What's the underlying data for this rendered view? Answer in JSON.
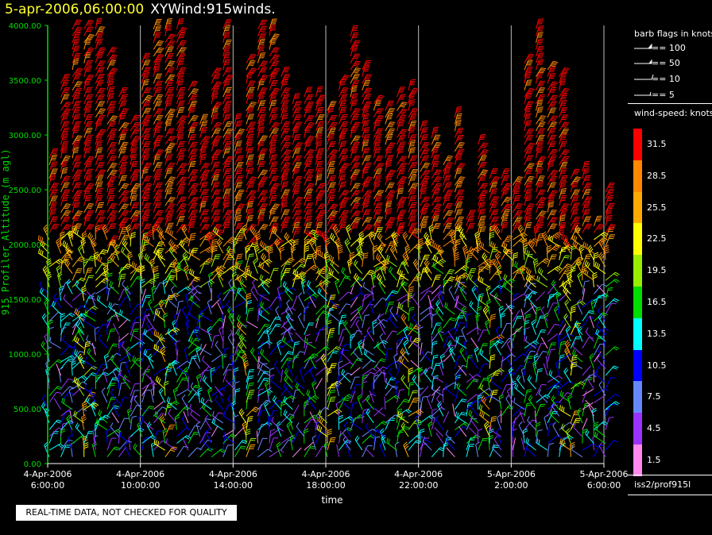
{
  "header": {
    "date": "5-apr-2006,06:00:00",
    "name": "XYWind:915winds."
  },
  "notice": "REAL-TIME DATA, NOT CHECKED FOR QUALITY",
  "legend": {
    "flags_title": "barb flags in knots",
    "flags": [
      "== 100",
      "== 50",
      "== 10",
      "== 5"
    ],
    "speed_title": "wind-speed: knots",
    "speed_bins": [
      {
        "label": "31.5",
        "color": "#ff0000"
      },
      {
        "label": "28.5",
        "color": "#ff8800"
      },
      {
        "label": "25.5",
        "color": "#ffaa00"
      },
      {
        "label": "22.5",
        "color": "#ffff00"
      },
      {
        "label": "19.5",
        "color": "#99ee00"
      },
      {
        "label": "16.5",
        "color": "#00dd00"
      },
      {
        "label": "13.5",
        "color": "#00ffff"
      },
      {
        "label": "10.5",
        "color": "#0000ff"
      },
      {
        "label": "7.5",
        "color": "#6688ff"
      },
      {
        "label": "4.5",
        "color": "#9933ff"
      },
      {
        "label": "1.5",
        "color": "#ff88ee"
      }
    ],
    "source": "iss2/prof915l"
  },
  "chart_data": {
    "type": "wind-barb time-height",
    "xlabel": "time",
    "ylabel": "915 Profiler Altitude (m agl)",
    "y_range": [
      0,
      4000
    ],
    "y_ticks": [
      "0.00",
      "500.00",
      "1000.00",
      "1500.00",
      "2000.00",
      "2500.00",
      "3000.00",
      "3500.00",
      "4000.00"
    ],
    "x_ticks": [
      {
        "date": "4-Apr-2006",
        "time": "6:00:00",
        "hours": 0
      },
      {
        "date": "4-Apr-2006",
        "time": "10:00:00",
        "hours": 4
      },
      {
        "date": "4-Apr-2006",
        "time": "14:00:00",
        "hours": 8
      },
      {
        "date": "4-Apr-2006",
        "time": "18:00:00",
        "hours": 12
      },
      {
        "date": "4-Apr-2006",
        "time": "22:00:00",
        "hours": 16
      },
      {
        "date": "5-Apr-2006",
        "time": "2:00:00",
        "hours": 20
      },
      {
        "date": "5-Apr-2006",
        "time": "6:00:00",
        "hours": 24
      }
    ],
    "x_range_hours": [
      0,
      24
    ],
    "profile_hours": [
      0,
      0.5,
      1,
      1.5,
      2,
      2.5,
      3,
      3.5,
      4,
      4.5,
      5,
      5.5,
      6,
      6.5,
      7,
      7.5,
      8,
      8.5,
      9,
      9.5,
      10,
      10.5,
      11,
      11.5,
      12,
      12.5,
      13,
      13.5,
      14,
      14.5,
      15,
      15.5,
      16,
      16.5,
      17,
      17.5,
      18,
      18.5,
      19,
      19.5,
      20,
      20.5,
      21,
      21.5,
      22,
      22.5,
      23,
      23.5,
      24
    ],
    "profile_top_m": [
      2800,
      3500,
      4000,
      4000,
      4000,
      3750,
      3400,
      3150,
      3700,
      4000,
      4000,
      4000,
      3450,
      3100,
      3550,
      4000,
      3100,
      3700,
      4000,
      4000,
      3550,
      3300,
      3400,
      3350,
      3250,
      3500,
      3950,
      3650,
      3300,
      3250,
      3400,
      3450,
      3050,
      3000,
      2750,
      3200,
      2250,
      2950,
      2650,
      2650,
      2550,
      3700,
      4000,
      3650,
      3550,
      2650,
      2700,
      2200,
      2500
    ]
  }
}
